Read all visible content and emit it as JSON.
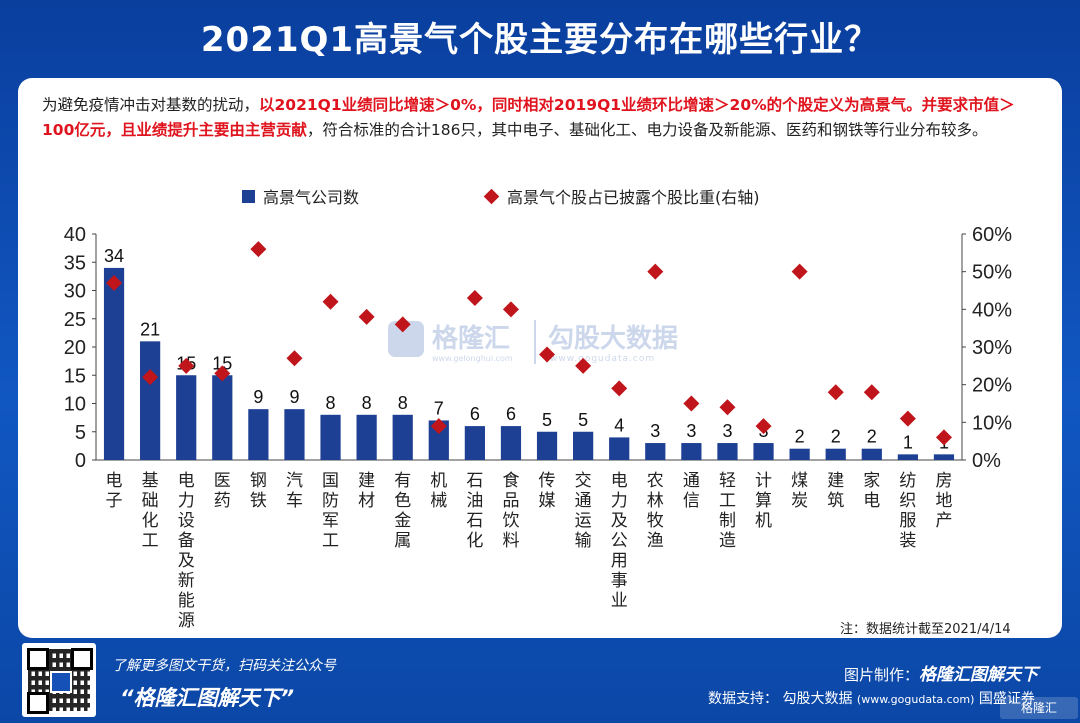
{
  "title": "2021Q1高景气个股主要分布在哪些行业？",
  "description": {
    "part1": "为避免疫情冲击对基数的扰动，",
    "part2_red": "以2021Q1业绩同比增速＞0%，同时相对2019Q1业绩环比增速＞20%的个股定义为高景气。并要求市值＞100亿元，且业绩提升主要由主营贡献",
    "part3": "，符合标准的合计186只，其中电子、基础化工、电力设备及新能源、医药和钢铁等行业分布较多。"
  },
  "legend": {
    "bar_label": "高景气公司数",
    "marker_label": "高景气个股占已披露个股比重(右轴)"
  },
  "watermark": {
    "brand1": "格隆汇",
    "brand1_sub": "www.gelonghui.com",
    "brand2": "勾股大数据",
    "brand2_sub": "www.gogudata.com"
  },
  "note": "注：数据统计截至2021/4/14",
  "footer": {
    "follow_text": "了解更多图文干货，扫码关注公众号",
    "slogan": "“格隆汇图解天下”",
    "credit_label": "图片制作：",
    "credit_brand": "格隆汇图解天下",
    "data_support_label": "数据支持：",
    "data_support_value": "勾股大数据",
    "data_support_url": "(www.gogudata.com)",
    "data_support_partner": "国盛证券",
    "corner_mark": "格隆汇"
  },
  "colors": {
    "bar": "#1d3f94",
    "marker": "#c0151b",
    "highlight_text": "#e0141e",
    "background": "#0d4aa8"
  },
  "chart_data": {
    "type": "bar",
    "title": "",
    "categories": [
      "电子",
      "基础化工",
      "电力设备及新能源",
      "医药",
      "钢铁",
      "汽车",
      "国防军工",
      "建材",
      "有色金属",
      "机械",
      "石油石化",
      "食品饮料",
      "传媒",
      "交通运输",
      "电力及公用事业",
      "农林牧渔",
      "通信",
      "轻工制造",
      "计算机",
      "煤炭",
      "建筑",
      "家电",
      "纺织服装",
      "房地产"
    ],
    "series": [
      {
        "name": "高景气公司数",
        "axis": "left",
        "kind": "bar",
        "values": [
          34,
          21,
          15,
          15,
          9,
          9,
          8,
          8,
          8,
          7,
          6,
          6,
          5,
          5,
          4,
          3,
          3,
          3,
          3,
          2,
          2,
          2,
          1,
          1
        ]
      },
      {
        "name": "高景气个股占已披露个股比重(右轴)",
        "axis": "right",
        "kind": "scatter",
        "unit": "%",
        "values": [
          47,
          22,
          25,
          23,
          56,
          27,
          42,
          38,
          36,
          9,
          43,
          40,
          28,
          25,
          19,
          50,
          15,
          14,
          9,
          50,
          18,
          18,
          11,
          6
        ]
      }
    ],
    "y_left": {
      "min": 0,
      "max": 40,
      "ticks": [
        0,
        5,
        10,
        15,
        20,
        25,
        30,
        35,
        40
      ]
    },
    "y_right": {
      "min": 0,
      "max": 60,
      "ticks": [
        "0%",
        "10%",
        "20%",
        "30%",
        "40%",
        "50%",
        "60%"
      ]
    },
    "legend_position": "top-left",
    "grid": false
  }
}
